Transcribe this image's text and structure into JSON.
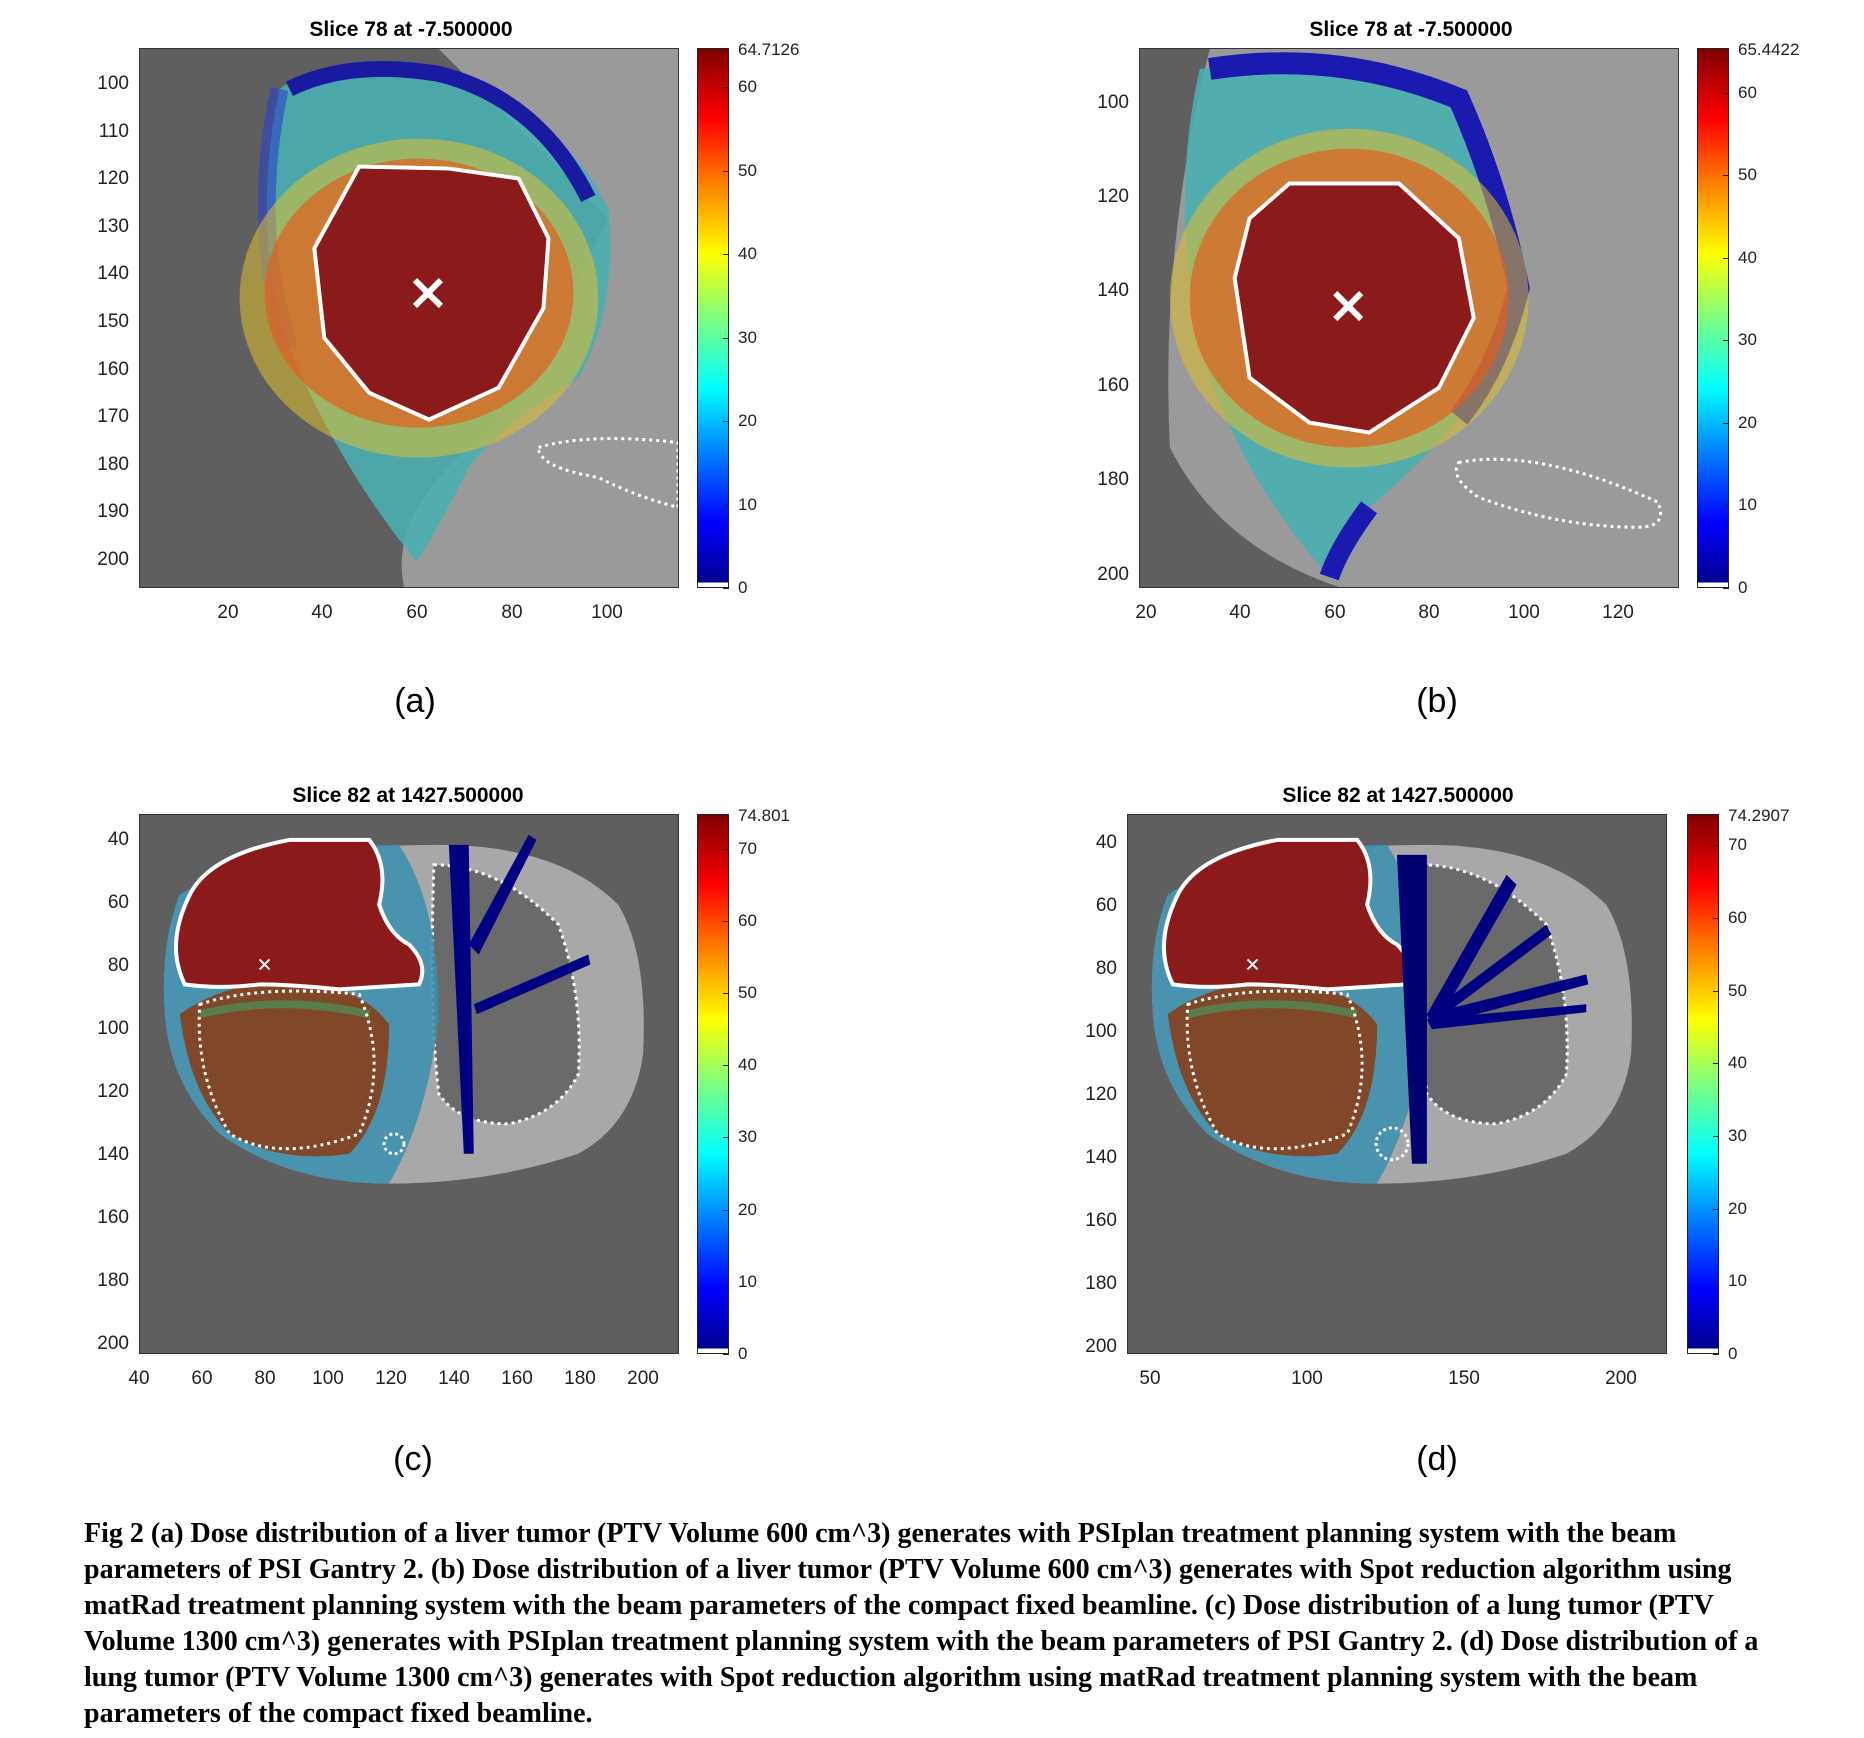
{
  "panels": [
    {
      "id": "a",
      "title": "Slice 78 at -7.500000",
      "label": "(a)",
      "yticks": [
        "100",
        "110",
        "120",
        "130",
        "140",
        "150",
        "160",
        "170",
        "180",
        "190",
        "200"
      ],
      "xticks": [
        "20",
        "40",
        "60",
        "80",
        "100"
      ],
      "colorbar_max": "64.7126",
      "colorbar_ticks": [
        "60",
        "50",
        "40",
        "30",
        "20",
        "10",
        "0"
      ],
      "colorbar_tick_values": [
        60,
        50,
        40,
        30,
        20,
        10,
        0
      ],
      "colorbar_range": [
        0,
        64.7126
      ],
      "image": "liver-dose"
    },
    {
      "id": "b",
      "title": "Slice 78 at -7.500000",
      "label": "(b)",
      "yticks": [
        "100",
        "120",
        "140",
        "160",
        "180",
        "200"
      ],
      "xticks": [
        "20",
        "40",
        "60",
        "80",
        "100",
        "120"
      ],
      "colorbar_max": "65.4422",
      "colorbar_ticks": [
        "60",
        "50",
        "40",
        "30",
        "20",
        "10",
        "0"
      ],
      "colorbar_tick_values": [
        60,
        50,
        40,
        30,
        20,
        10,
        0
      ],
      "colorbar_range": [
        0,
        65.4422
      ],
      "image": "liver-dose"
    },
    {
      "id": "c",
      "title": "Slice 82 at 1427.500000",
      "label": "(c)",
      "yticks": [
        "40",
        "60",
        "80",
        "100",
        "120",
        "140",
        "160",
        "180",
        "200"
      ],
      "xticks": [
        "40",
        "60",
        "80",
        "100",
        "120",
        "140",
        "160",
        "180",
        "200"
      ],
      "colorbar_max": "74.801",
      "colorbar_ticks": [
        "70",
        "60",
        "50",
        "40",
        "30",
        "20",
        "10",
        "0"
      ],
      "colorbar_tick_values": [
        70,
        60,
        50,
        40,
        30,
        20,
        10,
        0
      ],
      "colorbar_range": [
        0,
        74.801
      ],
      "image": "lung-dose"
    },
    {
      "id": "d",
      "title": "Slice 82 at 1427.500000",
      "label": "(d)",
      "yticks": [
        "40",
        "60",
        "80",
        "100",
        "120",
        "140",
        "160",
        "180",
        "200"
      ],
      "xticks": [
        "50",
        "100",
        "150",
        "200"
      ],
      "colorbar_max": "74.2907",
      "colorbar_ticks": [
        "70",
        "60",
        "50",
        "40",
        "30",
        "20",
        "10",
        "0"
      ],
      "colorbar_tick_values": [
        70,
        60,
        50,
        40,
        30,
        20,
        10,
        0
      ],
      "colorbar_range": [
        0,
        74.2907
      ],
      "image": "lung-dose"
    }
  ],
  "caption": "Fig 2 (a) Dose distribution of a liver tumor (PTV Volume 600 cm^3) generates with PSIplan treatment planning system with the beam parameters of PSI Gantry 2.  (b) Dose distribution of a liver tumor (PTV Volume 600 cm^3) generates with Spot reduction algorithm using matRad treatment planning system with the beam parameters of the compact fixed beamline. (c) Dose distribution of a lung tumor (PTV Volume 1300 cm^3) generates with PSIplan treatment planning system with the beam parameters of PSI Gantry 2.  (d) Dose distribution of a lung tumor (PTV Volume 1300 cm^3) generates with Spot reduction algorithm using matRad treatment planning system with the beam parameters of the compact fixed beamline.",
  "colors": {
    "ct_background": "#5f5f5f",
    "tissue": "#9a9a9a",
    "dose_high": "#8b1a1a",
    "contour": "#ffffff"
  }
}
